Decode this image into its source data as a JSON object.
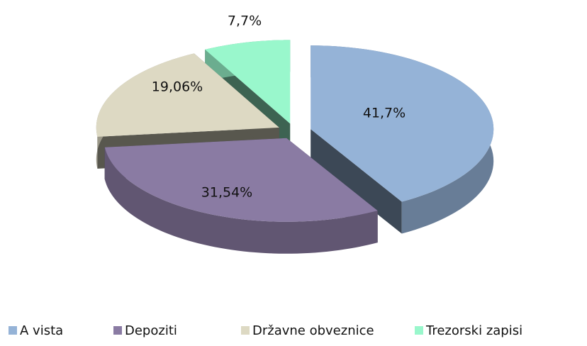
{
  "chart_data": {
    "type": "pie",
    "categories": [
      "A vista",
      "Depoziti",
      "Državne obveznice",
      "Trezorski zapisi"
    ],
    "values": [
      41.7,
      31.54,
      19.06,
      7.7
    ],
    "value_labels": [
      "41,7%",
      "31,54%",
      "19,06%",
      "7,7%"
    ],
    "colors": [
      "#95b3d7",
      "#8a7ba3",
      "#ddd9c3",
      "#99f7cc"
    ],
    "legend": "bottom"
  }
}
